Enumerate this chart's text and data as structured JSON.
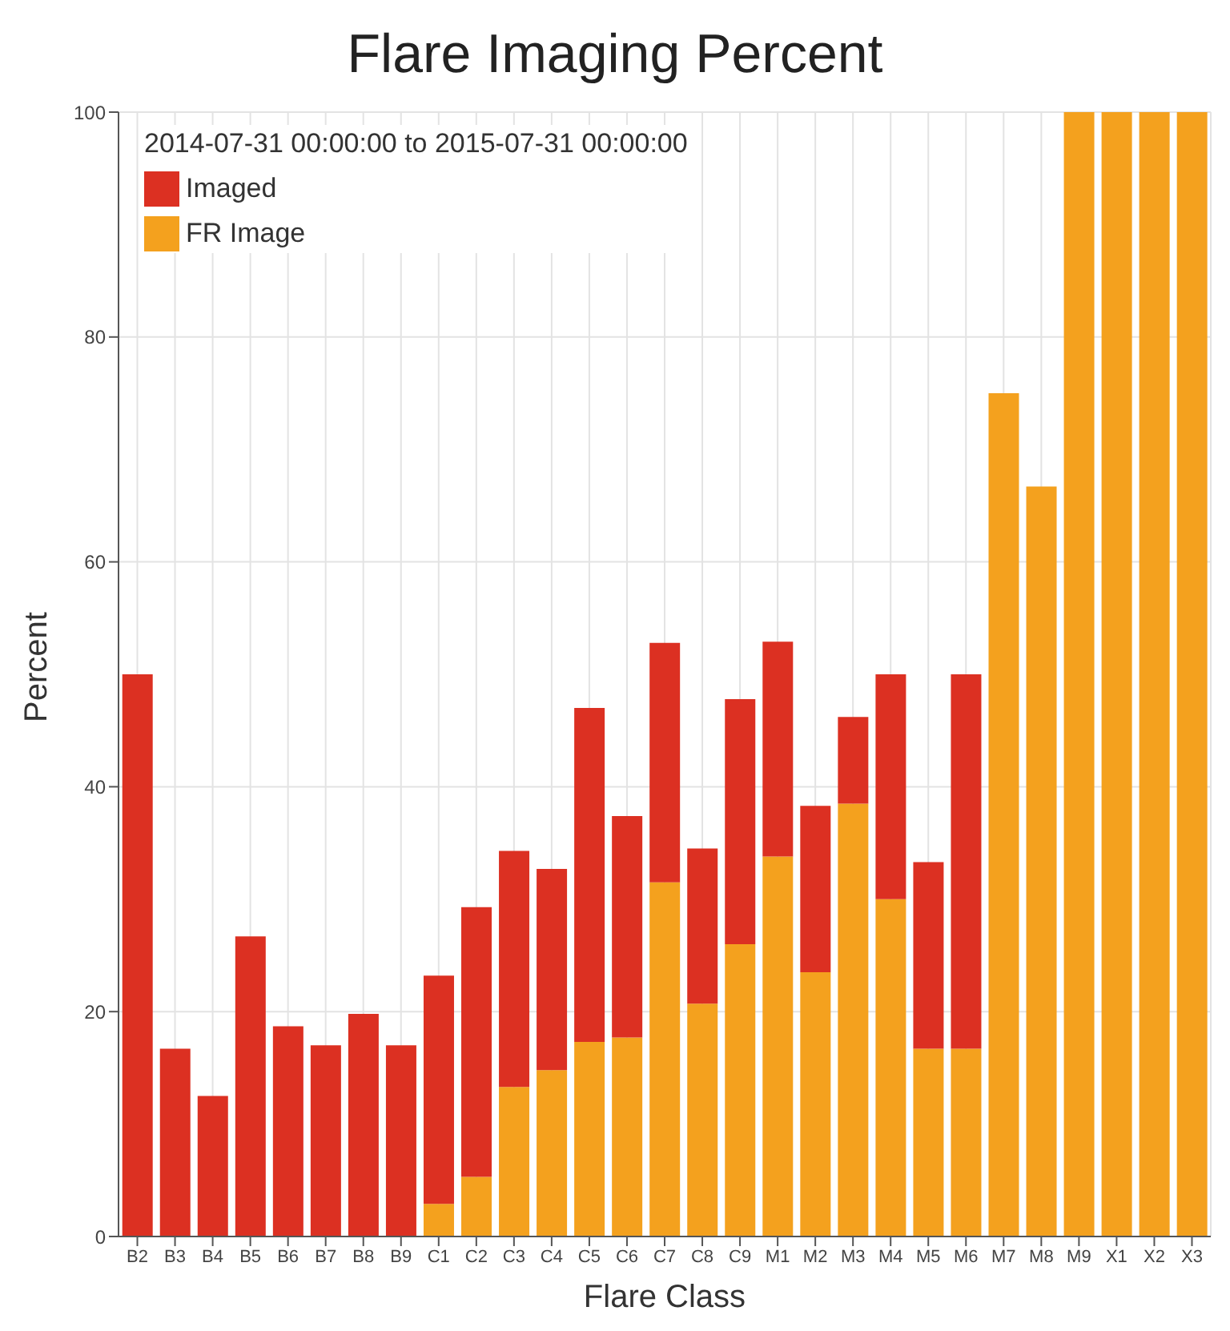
{
  "chart_data": {
    "type": "bar",
    "title": "Flare Imaging Percent",
    "xlabel": "Flare Class",
    "ylabel": "Percent",
    "legend_title": "2014-07-31 00:00:00 to 2015-07-31 00:00:00",
    "categories": [
      "B2",
      "B3",
      "B4",
      "B5",
      "B6",
      "B7",
      "B8",
      "B9",
      "C1",
      "C2",
      "C3",
      "C4",
      "C5",
      "C6",
      "C7",
      "C8",
      "C9",
      "M1",
      "M2",
      "M3",
      "M4",
      "M5",
      "M6",
      "M7",
      "M8",
      "M9",
      "X1",
      "X2",
      "X3"
    ],
    "stacked": true,
    "series": [
      {
        "name": "FR Image",
        "color": "#f4a11e",
        "values": [
          null,
          null,
          null,
          null,
          null,
          null,
          null,
          null,
          2.9,
          5.3,
          13.3,
          14.8,
          17.3,
          17.7,
          31.5,
          20.7,
          26,
          33.8,
          23.5,
          38.5,
          30,
          16.7,
          16.7,
          75,
          66.7,
          100,
          100,
          100,
          100
        ]
      },
      {
        "name": "Imaged",
        "color": "#dc3022",
        "values": [
          50,
          16.7,
          12.5,
          26.7,
          18.7,
          17,
          19.8,
          17,
          20.3,
          24,
          21,
          17.9,
          29.7,
          19.7,
          21.3,
          13.8,
          21.8,
          19.1,
          14.8,
          7.7,
          20,
          16.6,
          33.3,
          null,
          null,
          null,
          null,
          null,
          null
        ]
      }
    ],
    "ylim": [
      0,
      100
    ],
    "yticks": [
      0,
      20,
      40,
      60,
      80,
      100
    ],
    "grid": true,
    "legend": "top left"
  }
}
